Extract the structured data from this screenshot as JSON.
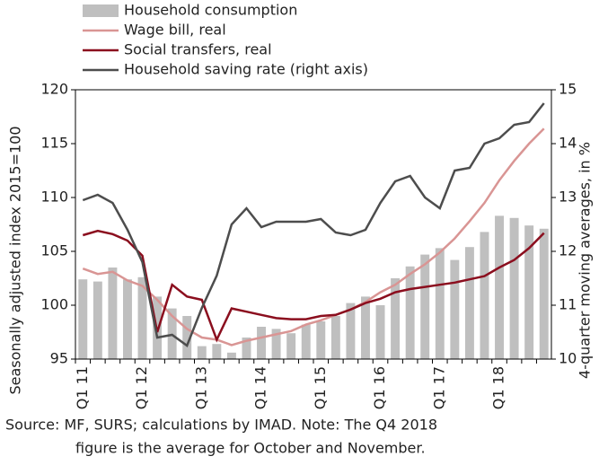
{
  "chart_data": {
    "type": "bar_line",
    "ylabel": "Seasonally adjusted index 2015=100",
    "y2label": "4-quarter moving averages, in %",
    "source": [
      "Source: MF, SURS; calculations by IMAD. Note: The Q4 2018",
      "figure is the average for October and November."
    ],
    "categories": [
      "Q1 11",
      null,
      null,
      null,
      "Q1 12",
      null,
      null,
      null,
      "Q1 13",
      null,
      null,
      null,
      "Q1 14",
      null,
      null,
      null,
      "Q1 15",
      null,
      null,
      null,
      "Q1 16",
      null,
      null,
      null,
      "Q1 17",
      null,
      null,
      null,
      "Q1 18",
      null,
      null,
      null
    ],
    "ylim": [
      95,
      120
    ],
    "yticks": [
      95,
      100,
      105,
      110,
      115,
      120
    ],
    "y2lim": [
      10,
      15
    ],
    "y2ticks": [
      10,
      11,
      12,
      13,
      14,
      15
    ],
    "series": [
      {
        "name": "Household consumption",
        "type": "bar",
        "color": "#bfbfbf",
        "values": [
          102.4,
          102.2,
          103.5,
          102.4,
          102.6,
          100.8,
          99.7,
          99.0,
          96.2,
          96.4,
          95.6,
          97.0,
          98.0,
          97.8,
          97.4,
          98.2,
          98.5,
          99.0,
          100.2,
          100.8,
          100.0,
          102.5,
          103.6,
          104.7,
          105.3,
          104.2,
          105.4,
          106.8,
          108.3,
          108.1,
          107.4,
          107.1
        ]
      },
      {
        "name": "Wage bill, real",
        "type": "line",
        "color": "#d99594",
        "values": [
          103.4,
          102.9,
          103.1,
          102.3,
          101.8,
          100.5,
          99.0,
          97.8,
          97.0,
          96.8,
          96.3,
          96.7,
          97.0,
          97.3,
          97.6,
          98.2,
          98.6,
          99.1,
          99.6,
          100.3,
          101.2,
          101.9,
          102.9,
          103.8,
          104.9,
          106.2,
          107.8,
          109.5,
          111.6,
          113.4,
          115.0,
          116.4
        ]
      },
      {
        "name": "Social transfers, real",
        "type": "line",
        "color": "#8b0e1e",
        "values": [
          106.5,
          106.9,
          106.6,
          106.0,
          104.6,
          97.5,
          101.9,
          100.8,
          100.5,
          96.8,
          99.7,
          99.4,
          99.1,
          98.8,
          98.7,
          98.7,
          99.0,
          99.1,
          99.6,
          100.2,
          100.6,
          101.2,
          101.5,
          101.7,
          101.9,
          102.1,
          102.4,
          102.7,
          103.5,
          104.2,
          105.3,
          106.7
        ]
      },
      {
        "name": "Household saving rate (right axis)",
        "type": "line",
        "axis": "y2",
        "color": "#4d4d4d",
        "values": [
          12.95,
          13.05,
          12.9,
          12.4,
          11.8,
          10.4,
          10.45,
          10.25,
          10.95,
          11.55,
          12.5,
          12.8,
          12.45,
          12.55,
          12.55,
          12.55,
          12.6,
          12.35,
          12.3,
          12.4,
          12.9,
          13.3,
          13.4,
          13.0,
          12.8,
          13.5,
          13.55,
          14.0,
          14.1,
          14.35,
          14.4,
          14.75
        ]
      }
    ]
  }
}
